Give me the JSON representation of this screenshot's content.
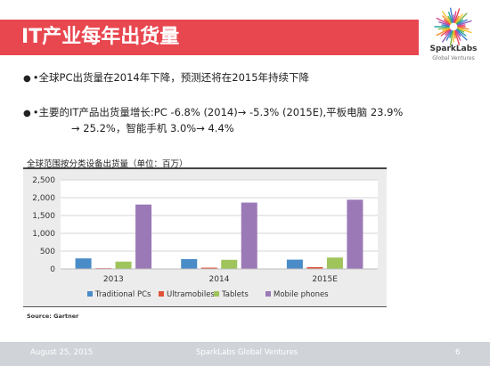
{
  "slide": {
    "title": "IT产业每年出货量",
    "bullets": [
      {
        "text": "•全球PC出货量在2014年下降，预测还将在2015年持续下降"
      },
      {
        "line1": "•主要的IT产品出货量增长:PC -6.8% (2014)→ -5.3% (2015E),平板电脑 23.9%",
        "line2": "→ 25.2%，智能手机 3.0%→ 4.4%"
      }
    ]
  },
  "logo": {
    "name": "SparkLabs",
    "sub": "Global Ventures"
  },
  "chart_data": {
    "type": "bar",
    "title": "全球范围按分类设备出货量（单位：百万）",
    "xlabel": "",
    "ylabel": "",
    "categories": [
      "2013",
      "2014",
      "2015E"
    ],
    "series": [
      {
        "name": "Traditional PCs",
        "color": "#4a8cc8",
        "values": [
          296,
          276,
          261
        ]
      },
      {
        "name": "Ultramobiles",
        "color": "#e0533a",
        "values": [
          21,
          37,
          51
        ]
      },
      {
        "name": "Tablets",
        "color": "#9fc45b",
        "values": [
          206,
          256,
          320
        ]
      },
      {
        "name": "Mobile phones",
        "color": "#9b79b7",
        "values": [
          1808,
          1862,
          1944
        ]
      }
    ],
    "ylim": [
      0,
      2500
    ],
    "yticks": [
      "0",
      "500",
      "1,000",
      "1,500",
      "2,000",
      "2,500"
    ],
    "grid": true,
    "legend_position": "bottom",
    "source": "Source: Gartner"
  },
  "footer": {
    "date": "August 25, 2015",
    "company": "SparkLabs Global Ventures",
    "page": "6"
  }
}
